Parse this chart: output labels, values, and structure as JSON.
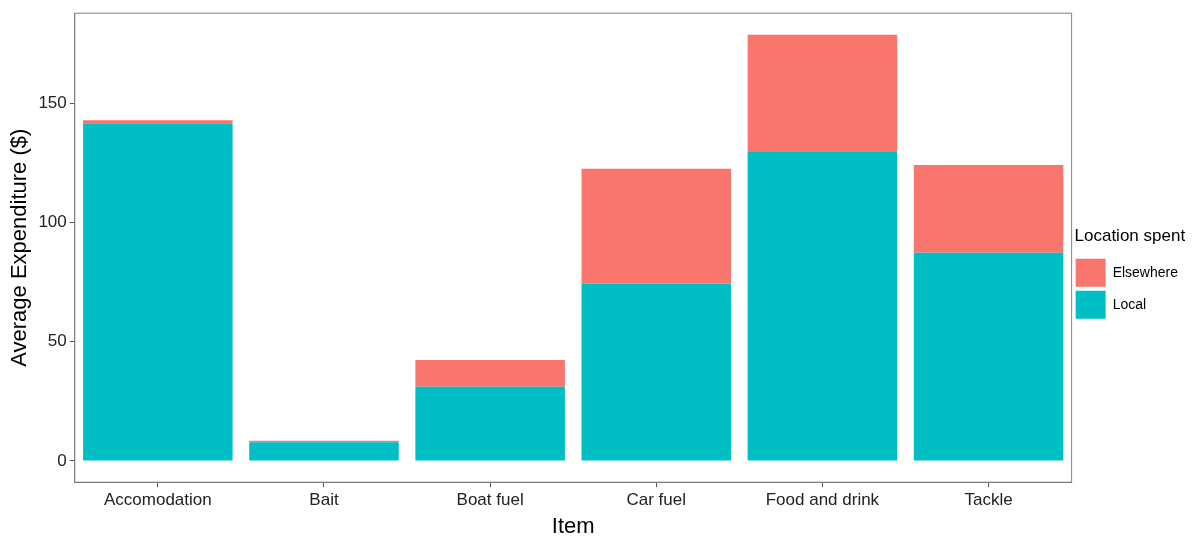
{
  "chart_data": {
    "type": "bar",
    "xlabel": "Item",
    "ylabel": "Average Expenditure ($)",
    "legend_title": "Location spent",
    "categories": [
      "Accomodation",
      "Bait",
      "Boat fuel",
      "Car fuel",
      "Food and drink",
      "Tackle"
    ],
    "series": [
      {
        "name": "Local",
        "color": "#00bfc4",
        "values": [
          141.6,
          7.8,
          31.1,
          74.4,
          129.5,
          87.3
        ]
      },
      {
        "name": "Elsewhere",
        "color": "#f8766d",
        "values": [
          1.2,
          0.7,
          11.2,
          48.1,
          49.2,
          36.8
        ]
      }
    ],
    "stacked": true,
    "ylim": [
      -8.9,
      187.7
    ],
    "yticks": [
      0,
      50,
      100,
      150
    ],
    "grid": false,
    "legend": "right"
  }
}
